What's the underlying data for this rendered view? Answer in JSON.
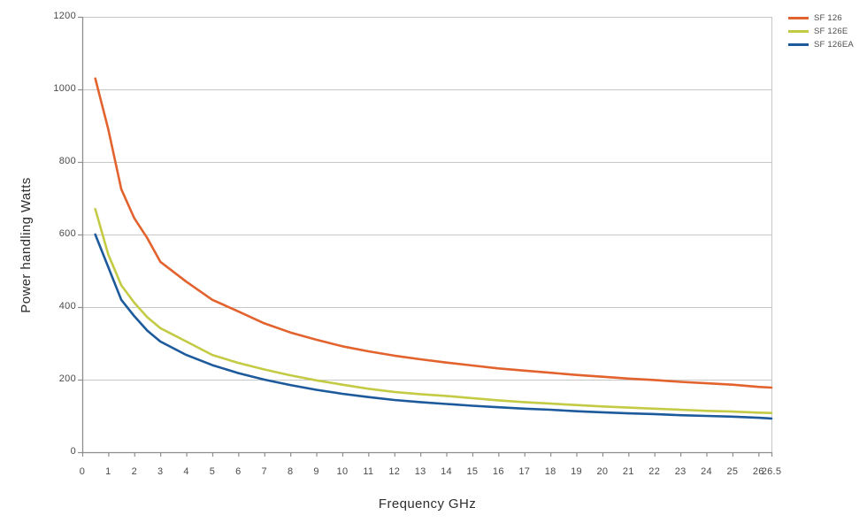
{
  "chart_data": {
    "type": "line",
    "title": "",
    "xlabel": "Frequency GHz",
    "ylabel": "Power handling Watts",
    "xlim": [
      0,
      26.5
    ],
    "ylim": [
      0,
      1200
    ],
    "x_ticks": [
      0,
      1,
      2,
      3,
      4,
      5,
      6,
      7,
      8,
      9,
      10,
      11,
      12,
      13,
      14,
      15,
      16,
      17,
      18,
      19,
      20,
      21,
      22,
      23,
      24,
      25,
      26,
      26.5
    ],
    "y_ticks": [
      0,
      200,
      400,
      600,
      800,
      1000,
      1200
    ],
    "grid": "horizontal-only",
    "legend_position": "top-right",
    "x": [
      0.5,
      1,
      1.5,
      2,
      2.5,
      3,
      4,
      5,
      6,
      7,
      8,
      9,
      10,
      11,
      12,
      13,
      14,
      15,
      16,
      17,
      18,
      19,
      20,
      21,
      22,
      23,
      24,
      25,
      26,
      26.5
    ],
    "series": [
      {
        "name": "SF 126",
        "color": "#E2632E",
        "values": [
          1030,
          890,
          725,
          645,
          590,
          525,
          470,
          420,
          388,
          355,
          330,
          310,
          292,
          278,
          266,
          256,
          247,
          239,
          231,
          225,
          219,
          213,
          208,
          203,
          199,
          194,
          190,
          186,
          180,
          178
        ]
      },
      {
        "name": "SF 126E",
        "color": "#C3CB44",
        "values": [
          670,
          545,
          460,
          412,
          372,
          342,
          305,
          268,
          246,
          228,
          212,
          198,
          186,
          175,
          166,
          160,
          155,
          149,
          143,
          138,
          134,
          130,
          126,
          123,
          120,
          117,
          114,
          112,
          109,
          108
        ]
      },
      {
        "name": "SF 126EA",
        "color": "#1C5A9C",
        "values": [
          600,
          510,
          420,
          375,
          335,
          305,
          268,
          240,
          218,
          200,
          185,
          172,
          161,
          152,
          144,
          138,
          133,
          128,
          124,
          120,
          117,
          113,
          110,
          107,
          105,
          102,
          100,
          98,
          95,
          93
        ]
      }
    ]
  },
  "colors": {
    "background": "#FFFFFF",
    "grid": "#C7C7C7",
    "axis": "#8E8E8E",
    "tick_text": "#4A4A4A",
    "title_text": "#2E2E2E",
    "legend_text": "#4D4D4D"
  }
}
